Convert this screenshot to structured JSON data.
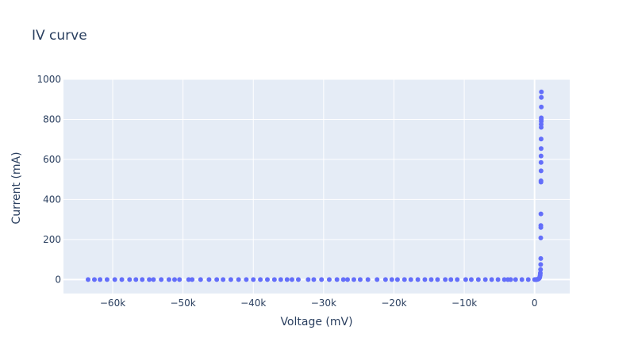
{
  "chart_data": {
    "type": "scatter",
    "title": "IV curve",
    "xlabel": "Voltage (mV)",
    "ylabel": "Current (mA)",
    "xlim": [
      -67000,
      5000
    ],
    "ylim": [
      -70,
      1000
    ],
    "xticks": [
      -60000,
      -50000,
      -40000,
      -30000,
      -20000,
      -10000,
      0
    ],
    "xtick_labels": [
      "−60k",
      "−50k",
      "−40k",
      "−30k",
      "−20k",
      "−10k",
      "0"
    ],
    "yticks": [
      0,
      200,
      400,
      600,
      800,
      1000
    ],
    "ytick_labels": [
      "0",
      "200",
      "400",
      "600",
      "800",
      "1000"
    ],
    "grid": true,
    "marker_color": "#636efa",
    "plot_bg": "#e5ecf6",
    "series": [
      {
        "points": [
          [
            -63500,
            0
          ],
          [
            -62600,
            0
          ],
          [
            -61800,
            0
          ],
          [
            -60800,
            0
          ],
          [
            -59700,
            0
          ],
          [
            -58700,
            0
          ],
          [
            -57600,
            0
          ],
          [
            -56700,
            0
          ],
          [
            -55800,
            0
          ],
          [
            -54800,
            0
          ],
          [
            -54200,
            0
          ],
          [
            -53100,
            0
          ],
          [
            -52000,
            0
          ],
          [
            -51200,
            0
          ],
          [
            -50500,
            0
          ],
          [
            -49200,
            0
          ],
          [
            -48700,
            0
          ],
          [
            -47500,
            0
          ],
          [
            -46300,
            0
          ],
          [
            -45200,
            0
          ],
          [
            -44300,
            0
          ],
          [
            -43200,
            0
          ],
          [
            -42100,
            0
          ],
          [
            -41000,
            0
          ],
          [
            -40000,
            0
          ],
          [
            -39000,
            0
          ],
          [
            -38000,
            0
          ],
          [
            -37000,
            0
          ],
          [
            -36100,
            0
          ],
          [
            -35200,
            0
          ],
          [
            -34500,
            0
          ],
          [
            -33600,
            0
          ],
          [
            -32200,
            0
          ],
          [
            -31400,
            0
          ],
          [
            -30300,
            0
          ],
          [
            -29200,
            0
          ],
          [
            -28100,
            0
          ],
          [
            -27200,
            0
          ],
          [
            -26600,
            0
          ],
          [
            -25700,
            0
          ],
          [
            -24800,
            0
          ],
          [
            -23700,
            0
          ],
          [
            -22400,
            0
          ],
          [
            -21200,
            0
          ],
          [
            -20300,
            0
          ],
          [
            -19500,
            0
          ],
          [
            -18500,
            0
          ],
          [
            -17600,
            0
          ],
          [
            -16600,
            0
          ],
          [
            -15600,
            0
          ],
          [
            -14700,
            0
          ],
          [
            -13800,
            0
          ],
          [
            -12700,
            0
          ],
          [
            -11900,
            0
          ],
          [
            -11000,
            0
          ],
          [
            -9800,
            0
          ],
          [
            -9000,
            0
          ],
          [
            -8000,
            0
          ],
          [
            -7000,
            0
          ],
          [
            -6100,
            0
          ],
          [
            -5200,
            0
          ],
          [
            -4300,
            0
          ],
          [
            -3800,
            0
          ],
          [
            -3400,
            0
          ],
          [
            -2700,
            0
          ],
          [
            -1800,
            0
          ],
          [
            -900,
            0
          ],
          [
            0,
            0
          ],
          [
            100,
            0
          ],
          [
            200,
            0
          ],
          [
            300,
            0
          ],
          [
            400,
            1
          ],
          [
            500,
            2
          ],
          [
            600,
            4
          ],
          [
            700,
            8
          ],
          [
            750,
            14
          ],
          [
            800,
            22
          ],
          [
            820,
            32
          ],
          [
            850,
            50
          ],
          [
            870,
            75
          ],
          [
            880,
            105
          ],
          [
            880,
            208
          ],
          [
            890,
            260
          ],
          [
            890,
            270
          ],
          [
            900,
            328
          ],
          [
            910,
            487
          ],
          [
            910,
            493
          ],
          [
            920,
            543
          ],
          [
            920,
            585
          ],
          [
            920,
            617
          ],
          [
            930,
            654
          ],
          [
            930,
            702
          ],
          [
            940,
            760
          ],
          [
            940,
            775
          ],
          [
            950,
            790
          ],
          [
            950,
            800
          ],
          [
            950,
            808
          ],
          [
            960,
            862
          ],
          [
            960,
            910
          ],
          [
            970,
            937
          ]
        ]
      }
    ]
  }
}
